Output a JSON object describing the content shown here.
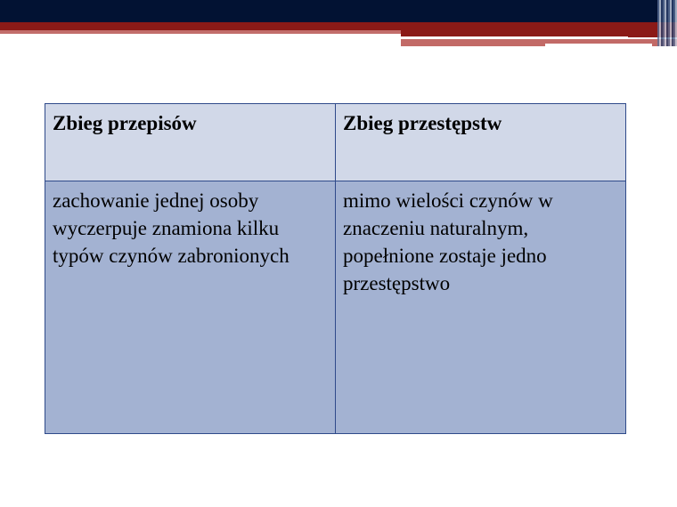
{
  "table": {
    "headers": [
      "Zbieg przepisów",
      "Zbieg przestępstw"
    ],
    "row": [
      "zachowanie jednej osoby wyczerpuje znamiona kilku typów czynów zabronionych",
      "mimo wielości czynów w znaczeniu naturalnym, popełnione zostaje jedno przestępstwo"
    ]
  },
  "colors": {
    "header_bg": "#d1d8e8",
    "body_bg": "#a3b2d2",
    "border": "#2f4a8a",
    "navy": "#021233",
    "red": "#8b1a17"
  }
}
